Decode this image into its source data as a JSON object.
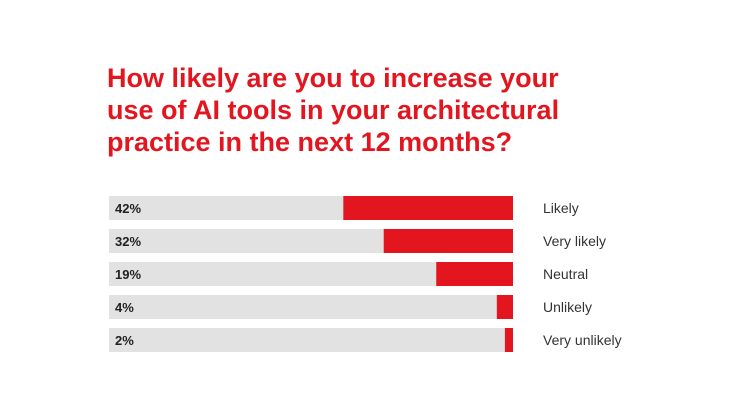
{
  "title_lines": [
    "How likely are you to increase your",
    "use of AI tools in your architectural",
    "practice in the next 12 months?"
  ],
  "colors": {
    "accent": "#e3161f",
    "track": "#e2e2e2",
    "label_text": "#222222"
  },
  "chart_data": {
    "type": "bar",
    "orientation": "horizontal",
    "title": "How likely are you to increase your use of AI tools in your architectural practice in the next 12 months?",
    "categories": [
      "Likely",
      "Very likely",
      "Neutral",
      "Unlikely",
      "Very unlikely"
    ],
    "values": [
      42,
      32,
      19,
      4,
      2
    ],
    "value_labels": [
      "42%",
      "32%",
      "19%",
      "4%",
      "2%"
    ],
    "unit": "%",
    "xlim": [
      0,
      100
    ],
    "grid": false,
    "legend": "none"
  }
}
